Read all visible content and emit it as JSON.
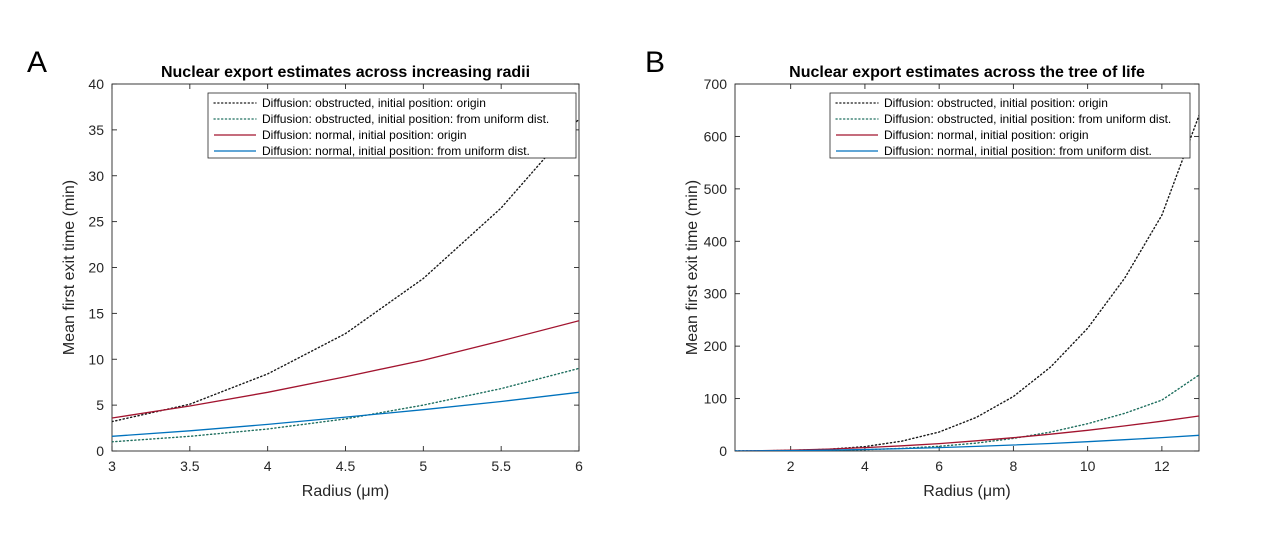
{
  "figure": {
    "panel_letters": [
      "A",
      "B"
    ],
    "legend_entries": [
      "Diffusion: obstructed, initial position: origin",
      "Diffusion: obstructed, initial position: from uniform dist.",
      "Diffusion: normal, initial position: origin",
      "Diffusion: normal, initial position: from uniform dist."
    ],
    "colors": {
      "obstructed_origin": "#1a1a1a",
      "obstructed_uniform": "#1f6f5f",
      "normal_origin": "#a2142f",
      "normal_uniform": "#0072bd"
    }
  },
  "chart_data": [
    {
      "type": "line",
      "panel": "A",
      "title": "Nuclear export estimates across increasing radii",
      "xlabel": "Radius (μm)",
      "ylabel": "Mean first exit time (min)",
      "xlim": [
        3,
        6
      ],
      "ylim": [
        0,
        40
      ],
      "xticks": [
        3,
        3.5,
        4,
        4.5,
        5,
        5.5,
        6
      ],
      "yticks": [
        0,
        5,
        10,
        15,
        20,
        25,
        30,
        35,
        40
      ],
      "grid": false,
      "legend_position": "top-right",
      "x": [
        3,
        3.5,
        4,
        4.5,
        5,
        5.5,
        6
      ],
      "series": [
        {
          "name": "Diffusion: obstructed, initial position: origin",
          "style": "dotted",
          "color": "#1a1a1a",
          "values": [
            3.2,
            5.1,
            8.4,
            12.8,
            18.8,
            26.5,
            36.2
          ]
        },
        {
          "name": "Diffusion: obstructed, initial position: from uniform dist.",
          "style": "dotted",
          "color": "#1f6f5f",
          "values": [
            1.0,
            1.6,
            2.4,
            3.5,
            5.0,
            6.8,
            9.0
          ]
        },
        {
          "name": "Diffusion: normal, initial position: origin",
          "style": "solid",
          "color": "#a2142f",
          "values": [
            3.6,
            4.9,
            6.4,
            8.1,
            9.9,
            12.0,
            14.2
          ]
        },
        {
          "name": "Diffusion: normal, initial position: from uniform dist.",
          "style": "solid",
          "color": "#0072bd",
          "values": [
            1.6,
            2.2,
            2.9,
            3.7,
            4.5,
            5.4,
            6.4
          ]
        }
      ]
    },
    {
      "type": "line",
      "panel": "B",
      "title": "Nuclear export estimates across the tree of life",
      "xlabel": "Radius (μm)",
      "ylabel": "Mean first exit time (min)",
      "xlim": [
        0.5,
        13
      ],
      "ylim": [
        0,
        700
      ],
      "xticks": [
        2,
        4,
        6,
        8,
        10,
        12
      ],
      "yticks": [
        0,
        100,
        200,
        300,
        400,
        500,
        600,
        700
      ],
      "grid": false,
      "legend_position": "top-right",
      "x": [
        0.5,
        1,
        2,
        3,
        4,
        5,
        6,
        7,
        8,
        9,
        10,
        11,
        12,
        13
      ],
      "series": [
        {
          "name": "Diffusion: obstructed, initial position: origin",
          "style": "dotted",
          "color": "#1a1a1a",
          "values": [
            0,
            0.1,
            1.2,
            3.2,
            8.4,
            18.8,
            36.2,
            64,
            104,
            160,
            234,
            330,
            450,
            640
          ]
        },
        {
          "name": "Diffusion: obstructed, initial position: from uniform dist.",
          "style": "dotted",
          "color": "#1f6f5f",
          "values": [
            0,
            0.03,
            0.3,
            1.0,
            2.4,
            5.0,
            9.0,
            15,
            24,
            36,
            52,
            72,
            97,
            145
          ]
        },
        {
          "name": "Diffusion: normal, initial position: origin",
          "style": "solid",
          "color": "#a2142f",
          "values": [
            0,
            0.3,
            1.6,
            3.6,
            6.4,
            9.9,
            14.2,
            19.4,
            25.3,
            32,
            39.5,
            47.8,
            56.8,
            66.7
          ]
        },
        {
          "name": "Diffusion: normal, initial position: from uniform dist.",
          "style": "solid",
          "color": "#0072bd",
          "values": [
            0,
            0.1,
            0.7,
            1.6,
            2.9,
            4.5,
            6.4,
            8.7,
            11.4,
            14.4,
            17.8,
            21.5,
            25.6,
            30
          ]
        }
      ]
    }
  ]
}
